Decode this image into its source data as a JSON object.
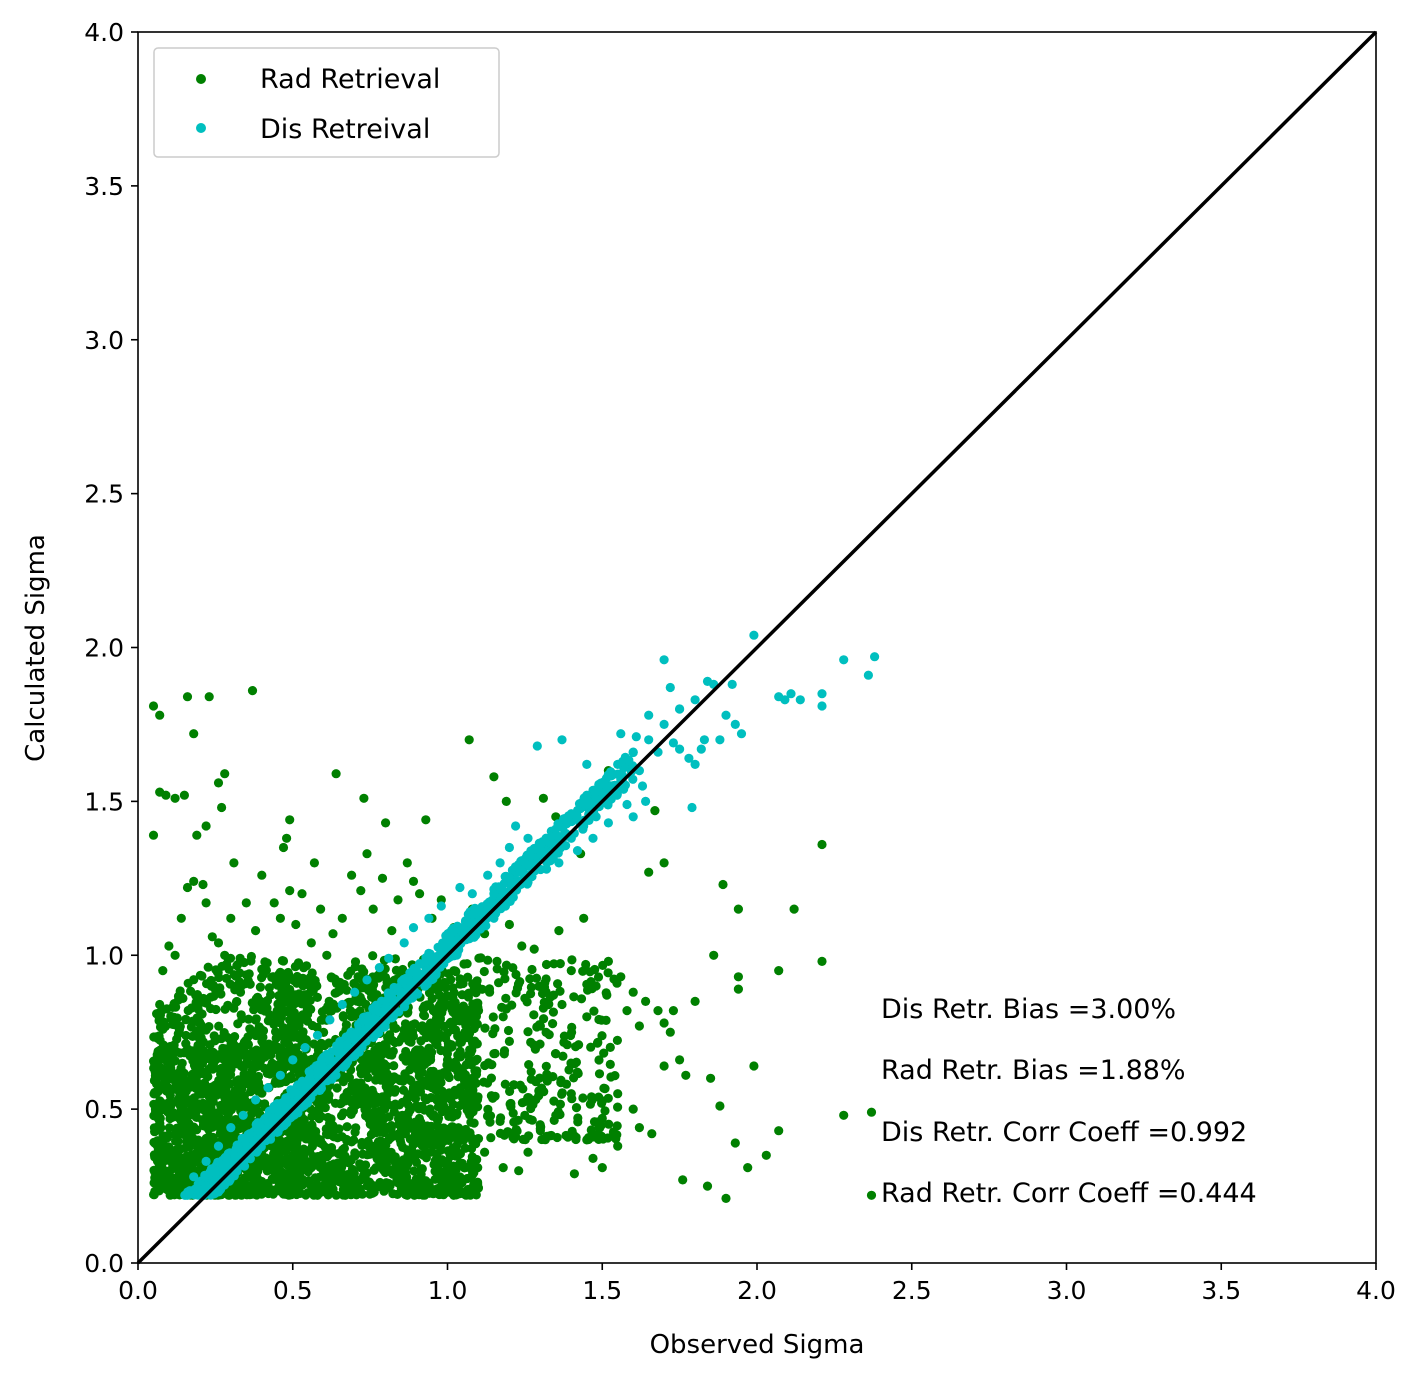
{
  "chart_data": {
    "type": "scatter",
    "title": "",
    "xlabel": "Observed Sigma",
    "ylabel": "Calculated Sigma",
    "xlim": [
      0,
      4
    ],
    "ylim": [
      0,
      4
    ],
    "x_ticks": [
      "0.0",
      "0.5",
      "1.0",
      "1.5",
      "2.0",
      "2.5",
      "3.0",
      "3.5",
      "4.0"
    ],
    "y_ticks": [
      "0.0",
      "0.5",
      "1.0",
      "1.5",
      "2.0",
      "2.5",
      "3.0",
      "3.5",
      "4.0"
    ],
    "grid": false,
    "legend_position": "upper-left",
    "reference_line": {
      "x": [
        0,
        4
      ],
      "y": [
        0,
        4
      ],
      "color": "#000000"
    },
    "series": [
      {
        "name": "Rad Retrieval",
        "color": "#008000",
        "points": [
          [
            0.05,
            1.81
          ],
          [
            0.07,
            1.78
          ],
          [
            0.16,
            1.84
          ],
          [
            0.23,
            1.84
          ],
          [
            0.37,
            1.86
          ],
          [
            0.18,
            1.72
          ],
          [
            0.07,
            1.53
          ],
          [
            0.09,
            1.52
          ],
          [
            0.12,
            1.51
          ],
          [
            0.15,
            1.52
          ],
          [
            0.26,
            1.56
          ],
          [
            0.28,
            1.59
          ],
          [
            0.27,
            1.48
          ],
          [
            0.05,
            1.39
          ],
          [
            0.19,
            1.39
          ],
          [
            0.22,
            1.42
          ],
          [
            0.49,
            1.44
          ],
          [
            0.48,
            1.38
          ],
          [
            0.64,
            1.59
          ],
          [
            0.73,
            1.51
          ],
          [
            0.31,
            1.3
          ],
          [
            0.47,
            1.35
          ],
          [
            0.57,
            1.3
          ],
          [
            0.74,
            1.33
          ],
          [
            0.8,
            1.43
          ],
          [
            0.93,
            1.44
          ],
          [
            1.07,
            1.7
          ],
          [
            1.15,
            1.58
          ],
          [
            1.19,
            1.5
          ],
          [
            1.31,
            1.51
          ],
          [
            1.35,
            1.45
          ],
          [
            1.37,
            1.36
          ],
          [
            1.43,
            1.33
          ],
          [
            1.52,
            1.6
          ],
          [
            1.67,
            1.47
          ],
          [
            1.7,
            1.3
          ],
          [
            1.65,
            1.27
          ],
          [
            1.89,
            1.23
          ],
          [
            1.94,
            1.15
          ],
          [
            2.12,
            1.15
          ],
          [
            2.21,
            1.36
          ],
          [
            2.21,
            0.98
          ],
          [
            2.07,
            0.95
          ],
          [
            1.86,
            1.0
          ],
          [
            1.94,
            0.93
          ],
          [
            1.94,
            0.89
          ],
          [
            1.8,
            0.85
          ],
          [
            1.73,
            0.82
          ],
          [
            1.7,
            0.78
          ],
          [
            1.99,
            0.64
          ],
          [
            1.77,
            0.61
          ],
          [
            1.85,
            0.6
          ],
          [
            1.88,
            0.51
          ],
          [
            2.28,
            0.48
          ],
          [
            2.37,
            0.49
          ],
          [
            2.07,
            0.43
          ],
          [
            1.93,
            0.39
          ],
          [
            1.97,
            0.31
          ],
          [
            2.03,
            0.35
          ],
          [
            1.9,
            0.21
          ],
          [
            1.84,
            0.25
          ],
          [
            1.76,
            0.27
          ],
          [
            2.37,
            0.22
          ],
          [
            1.5,
            0.31
          ],
          [
            1.41,
            0.29
          ],
          [
            1.23,
            0.3
          ],
          [
            1.18,
            0.31
          ],
          [
            1.02,
            0.22
          ],
          [
            1.06,
            0.23
          ],
          [
            0.78,
            0.25
          ],
          [
            0.87,
            0.22
          ],
          [
            0.94,
            0.26
          ],
          [
            0.06,
            0.81
          ],
          [
            0.07,
            0.84
          ],
          [
            0.08,
            0.95
          ],
          [
            0.1,
            1.03
          ],
          [
            0.12,
            1.0
          ],
          [
            0.14,
            1.12
          ],
          [
            0.16,
            1.22
          ],
          [
            0.18,
            1.24
          ],
          [
            0.21,
            1.23
          ],
          [
            0.22,
            1.17
          ],
          [
            0.24,
            1.06
          ],
          [
            0.26,
            1.04
          ],
          [
            0.28,
            1.0
          ],
          [
            0.3,
            1.12
          ],
          [
            0.33,
            0.99
          ],
          [
            0.35,
            1.17
          ],
          [
            0.38,
            1.08
          ],
          [
            0.4,
            1.26
          ],
          [
            0.44,
            1.17
          ],
          [
            0.46,
            1.12
          ],
          [
            0.49,
            1.21
          ],
          [
            0.51,
            1.1
          ],
          [
            0.53,
            1.2
          ],
          [
            0.56,
            1.04
          ],
          [
            0.59,
            1.15
          ],
          [
            0.61,
            1.0
          ],
          [
            0.63,
            1.07
          ],
          [
            0.66,
            1.12
          ],
          [
            0.69,
            1.26
          ],
          [
            0.72,
            1.21
          ],
          [
            0.76,
            1.15
          ],
          [
            0.79,
            1.25
          ],
          [
            0.82,
            1.08
          ],
          [
            0.84,
            1.18
          ],
          [
            0.87,
            1.3
          ],
          [
            0.89,
            1.24
          ],
          [
            0.91,
            1.2
          ],
          [
            0.95,
            1.12
          ],
          [
            0.98,
            1.18
          ],
          [
            1.02,
            1.09
          ],
          [
            1.05,
            1.05
          ],
          [
            1.08,
            1.15
          ],
          [
            1.12,
            1.07
          ],
          [
            1.16,
            0.98
          ],
          [
            1.2,
            1.1
          ],
          [
            1.24,
            1.03
          ],
          [
            1.28,
            1.02
          ],
          [
            1.32,
            0.97
          ],
          [
            1.36,
            1.08
          ],
          [
            1.4,
            0.95
          ],
          [
            1.44,
            1.12
          ],
          [
            1.48,
            0.9
          ],
          [
            1.52,
            0.98
          ],
          [
            1.56,
            0.93
          ],
          [
            1.6,
            0.88
          ],
          [
            1.64,
            0.85
          ],
          [
            1.68,
            0.82
          ],
          [
            1.72,
            0.75
          ],
          [
            1.58,
            0.82
          ],
          [
            1.62,
            0.77
          ],
          [
            1.45,
            0.8
          ],
          [
            1.37,
            0.84
          ],
          [
            1.3,
            0.77
          ],
          [
            1.25,
            0.86
          ],
          [
            1.2,
            0.72
          ],
          [
            1.15,
            0.68
          ],
          [
            1.1,
            0.82
          ],
          [
            1.05,
            0.62
          ],
          [
            1.0,
            0.66
          ],
          [
            0.95,
            0.57
          ],
          [
            0.9,
            0.51
          ],
          [
            0.86,
            0.45
          ],
          [
            0.81,
            0.4
          ],
          [
            0.77,
            0.35
          ],
          [
            0.72,
            0.31
          ],
          [
            0.68,
            0.27
          ],
          [
            0.63,
            0.24
          ],
          [
            0.58,
            0.22
          ],
          [
            1.4,
            0.55
          ],
          [
            1.35,
            0.48
          ],
          [
            1.3,
            0.43
          ],
          [
            1.26,
            0.36
          ],
          [
            1.22,
            0.41
          ],
          [
            1.17,
            0.46
          ],
          [
            1.12,
            0.36
          ],
          [
            1.08,
            0.3
          ],
          [
            1.04,
            0.4
          ],
          [
            1.0,
            0.33
          ],
          [
            0.96,
            0.42
          ],
          [
            0.92,
            0.38
          ],
          [
            1.55,
            0.55
          ],
          [
            1.6,
            0.5
          ],
          [
            1.5,
            0.47
          ],
          [
            1.45,
            0.4
          ],
          [
            1.55,
            0.38
          ],
          [
            1.47,
            0.34
          ],
          [
            1.62,
            0.44
          ],
          [
            1.66,
            0.42
          ],
          [
            1.7,
            0.64
          ],
          [
            1.75,
            0.66
          ],
          [
            1.35,
            0.68
          ],
          [
            1.42,
            0.62
          ]
        ],
        "clusters": [
          {
            "x": [
              0.05,
              0.55
            ],
            "y": [
              0.22,
              1.0
            ],
            "n": 900
          },
          {
            "x": [
              0.45,
              1.1
            ],
            "y": [
              0.22,
              0.95
            ],
            "n": 1300
          },
          {
            "x": [
              0.7,
              1.55
            ],
            "y": [
              0.4,
              1.0
            ],
            "n": 450
          },
          {
            "x": [
              0.05,
              0.4
            ],
            "y": [
              0.22,
              0.7
            ],
            "n": 500
          }
        ]
      },
      {
        "name": "Dis Retreival",
        "color": "#00bfbf",
        "points": [
          [
            0.16,
            0.22
          ],
          [
            0.19,
            0.24
          ],
          [
            0.22,
            0.25
          ],
          [
            0.25,
            0.27
          ],
          [
            0.28,
            0.3
          ],
          [
            0.31,
            0.33
          ],
          [
            0.35,
            0.37
          ],
          [
            0.4,
            0.42
          ],
          [
            0.45,
            0.47
          ],
          [
            0.5,
            0.52
          ],
          [
            0.55,
            0.57
          ],
          [
            0.6,
            0.63
          ],
          [
            0.65,
            0.68
          ],
          [
            0.7,
            0.73
          ],
          [
            0.75,
            0.78
          ],
          [
            0.8,
            0.83
          ],
          [
            0.85,
            0.88
          ],
          [
            0.9,
            0.93
          ],
          [
            0.95,
            0.98
          ],
          [
            1.0,
            1.04
          ],
          [
            1.05,
            1.09
          ],
          [
            1.1,
            1.14
          ],
          [
            1.15,
            1.2
          ],
          [
            1.2,
            1.25
          ],
          [
            1.25,
            1.3
          ],
          [
            1.3,
            1.35
          ],
          [
            1.35,
            1.41
          ],
          [
            1.4,
            1.46
          ],
          [
            1.45,
            1.52
          ],
          [
            1.5,
            1.56
          ],
          [
            1.55,
            1.62
          ],
          [
            1.6,
            1.66
          ],
          [
            1.65,
            1.7
          ],
          [
            1.7,
            1.75
          ],
          [
            1.75,
            1.8
          ],
          [
            1.8,
            1.83
          ],
          [
            1.29,
            1.68
          ],
          [
            1.37,
            1.7
          ],
          [
            1.45,
            1.62
          ],
          [
            1.56,
            1.72
          ],
          [
            1.61,
            1.71
          ],
          [
            1.65,
            1.78
          ],
          [
            1.7,
            1.96
          ],
          [
            1.72,
            1.87
          ],
          [
            1.75,
            1.8
          ],
          [
            1.84,
            1.89
          ],
          [
            1.86,
            1.88
          ],
          [
            1.92,
            1.88
          ],
          [
            1.99,
            2.04
          ],
          [
            2.07,
            1.84
          ],
          [
            2.09,
            1.83
          ],
          [
            2.11,
            1.85
          ],
          [
            2.14,
            1.83
          ],
          [
            2.21,
            1.85
          ],
          [
            2.21,
            1.81
          ],
          [
            2.28,
            1.96
          ],
          [
            2.36,
            1.91
          ],
          [
            2.38,
            1.97
          ],
          [
            1.93,
            1.75
          ],
          [
            1.95,
            1.72
          ],
          [
            1.88,
            1.7
          ],
          [
            1.82,
            1.67
          ],
          [
            1.78,
            1.64
          ],
          [
            1.73,
            1.69
          ],
          [
            1.68,
            1.66
          ],
          [
            1.62,
            1.6
          ],
          [
            1.56,
            1.57
          ],
          [
            1.52,
            1.5
          ],
          [
            1.48,
            1.45
          ],
          [
            1.44,
            1.42
          ],
          [
            1.4,
            1.38
          ],
          [
            1.36,
            1.3
          ],
          [
            1.32,
            1.28
          ],
          [
            1.26,
            1.38
          ],
          [
            1.22,
            1.42
          ],
          [
            1.17,
            1.3
          ],
          [
            1.13,
            1.26
          ],
          [
            1.08,
            1.2
          ],
          [
            1.04,
            1.22
          ],
          [
            0.98,
            1.16
          ],
          [
            0.94,
            1.12
          ],
          [
            0.89,
            1.09
          ],
          [
            0.86,
            1.04
          ],
          [
            0.81,
            0.99
          ],
          [
            0.78,
            0.96
          ],
          [
            0.74,
            0.92
          ],
          [
            0.7,
            0.88
          ],
          [
            0.66,
            0.84
          ],
          [
            0.62,
            0.79
          ],
          [
            0.58,
            0.74
          ],
          [
            0.54,
            0.7
          ],
          [
            0.5,
            0.66
          ],
          [
            0.46,
            0.61
          ],
          [
            0.42,
            0.57
          ],
          [
            0.38,
            0.53
          ],
          [
            0.34,
            0.48
          ],
          [
            0.3,
            0.44
          ],
          [
            0.26,
            0.38
          ],
          [
            0.22,
            0.33
          ],
          [
            0.18,
            0.28
          ],
          [
            1.58,
            1.49
          ],
          [
            1.63,
            1.55
          ],
          [
            1.52,
            1.43
          ],
          [
            1.47,
            1.38
          ],
          [
            1.42,
            1.34
          ],
          [
            1.75,
            1.67
          ],
          [
            1.9,
            1.78
          ],
          [
            1.83,
            1.7
          ],
          [
            1.8,
            1.62
          ],
          [
            1.79,
            1.48
          ],
          [
            1.64,
            1.5
          ],
          [
            1.6,
            1.45
          ],
          [
            1.2,
            1.35
          ],
          [
            1.15,
            1.12
          ]
        ],
        "band": {
          "x": [
            0.15,
            1.6
          ],
          "slope": 1.0,
          "offset": 0.02,
          "spread": 0.05,
          "n": 1200
        }
      }
    ],
    "annotations": [
      "Dis Retr. Bias =3.00%",
      "Rad Retr. Bias =1.88%",
      "Dis Retr. Corr Coeff =0.992",
      "Rad Retr. Corr Coeff =0.444"
    ]
  }
}
